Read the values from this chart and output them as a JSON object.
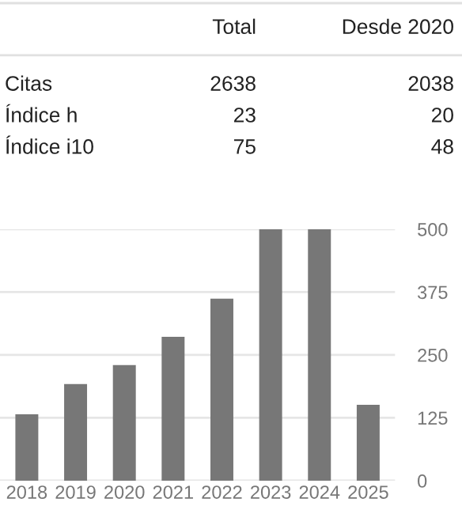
{
  "chart_data": [
    {
      "type": "other",
      "annotations": [
        "Total",
        "Desde 2020",
        "Citas",
        "2638",
        "2038",
        "Índice h",
        "23",
        "20",
        "Índice i10",
        "75",
        "48"
      ]
    },
    {
      "type": "bar",
      "categories": [
        "2018",
        "2019",
        "2020",
        "2021",
        "2022",
        "2023",
        "2024",
        "2025"
      ],
      "values": [
        132,
        192,
        230,
        286,
        362,
        500,
        500,
        151
      ],
      "color": "#777777",
      "ylim": [
        0,
        500
      ],
      "yticks": [
        0,
        125,
        250,
        375,
        500
      ],
      "grid": "y"
    }
  ]
}
